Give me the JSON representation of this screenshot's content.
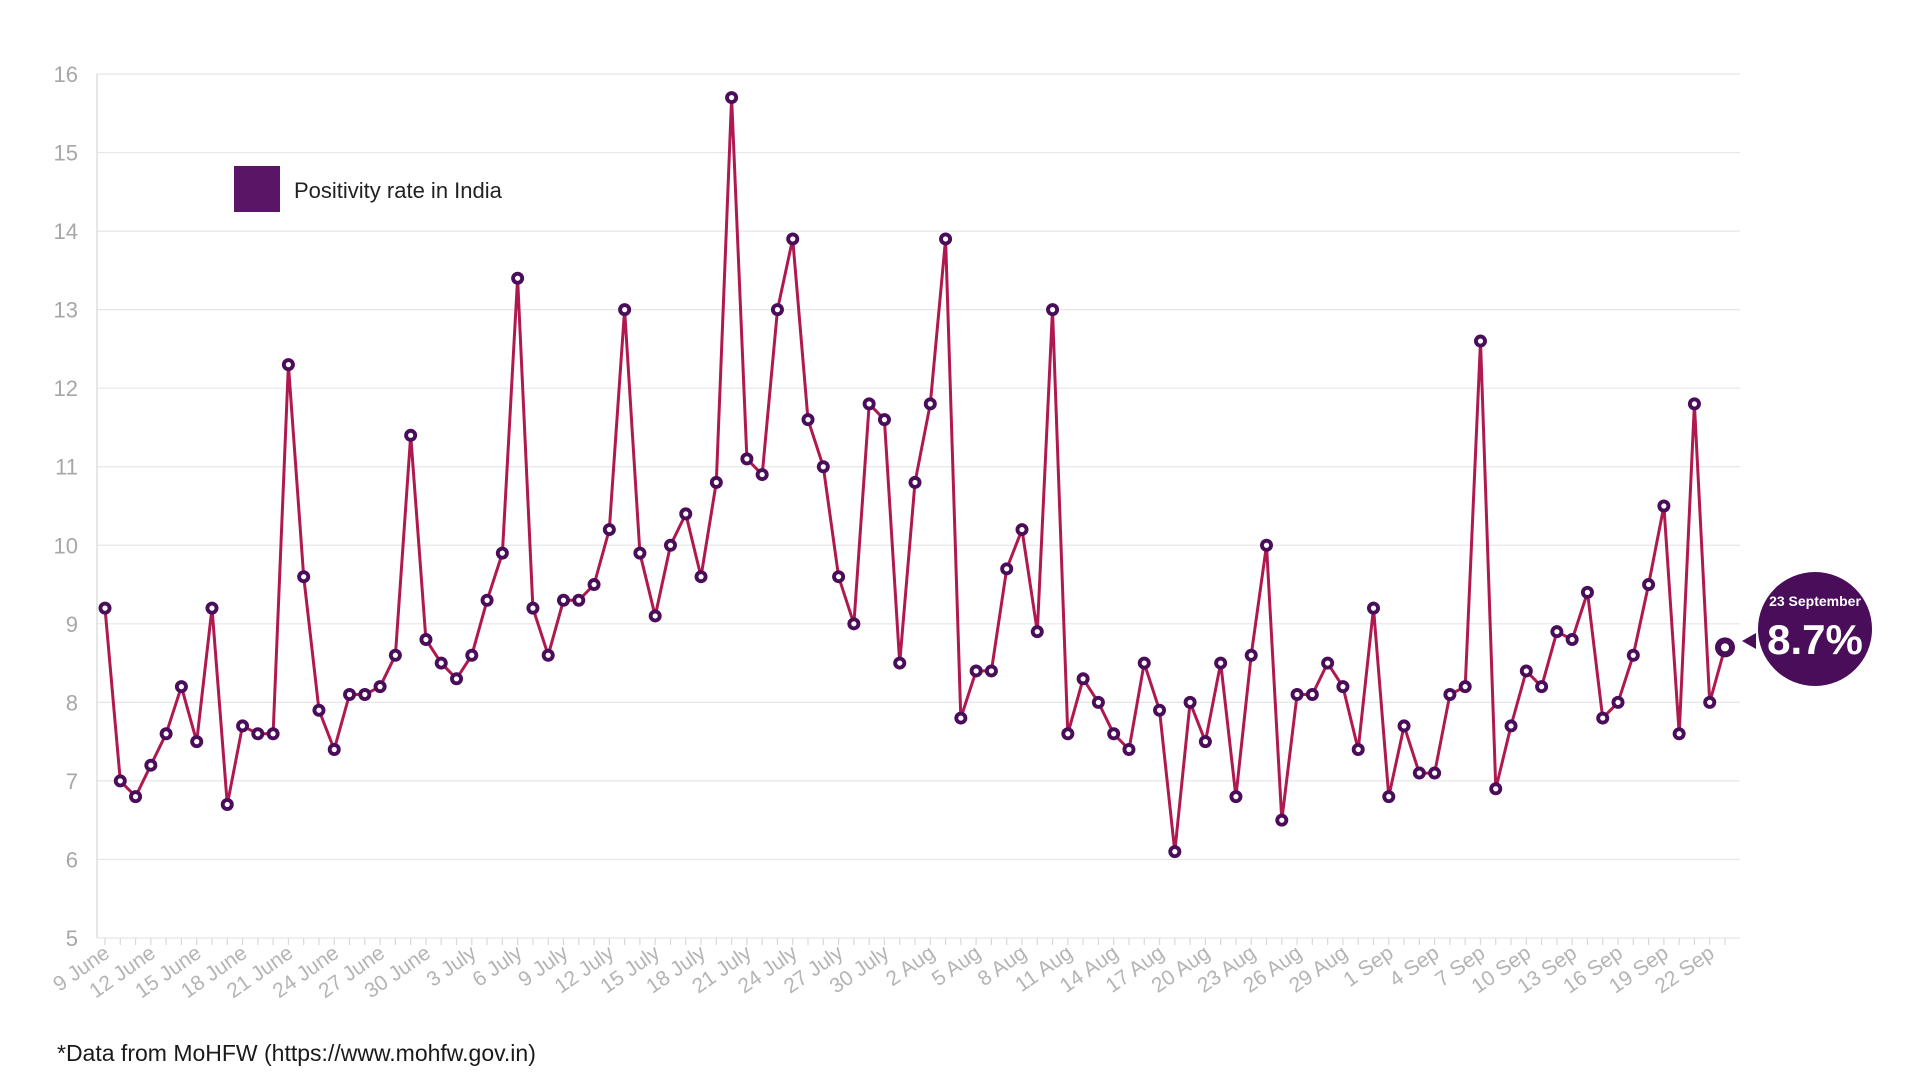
{
  "colors": {
    "line": "#b0194f",
    "marker_fill": "#4a0d5a",
    "marker_center": "#ffffff",
    "legend_swatch": "#5a1566",
    "callout_bg": "#4a0d5a"
  },
  "footnote": "*Data from MoHFW (https://www.mohfw.gov.in)",
  "callout": {
    "date": "23 September",
    "value": "8.7%"
  },
  "chart_data": {
    "type": "line",
    "title": "",
    "xlabel": "",
    "ylabel": "",
    "ylim": [
      5,
      16
    ],
    "yticks": [
      5,
      6,
      7,
      8,
      9,
      10,
      11,
      12,
      13,
      14,
      15,
      16
    ],
    "grid": true,
    "legend_position": "top-left",
    "x_tick_labels": [
      "9 June",
      "12 June",
      "15 June",
      "18 June",
      "21 June",
      "24 June",
      "27 June",
      "30 June",
      "3 July",
      "6 July",
      "9 July",
      "12 July",
      "15 July",
      "18 July",
      "21 July",
      "24 July",
      "27 July",
      "30 July",
      "2 Aug",
      "5 Aug",
      "8 Aug",
      "11 Aug",
      "14 Aug",
      "17 Aug",
      "20 Aug",
      "23 Aug",
      "26 Aug",
      "29 Aug",
      "1 Sep",
      "4 Sep",
      "7 Sep",
      "10 Sep",
      "13 Sep",
      "16 Sep",
      "19 Sep",
      "22 Sep"
    ],
    "series": [
      {
        "name": "Positivity rate in India",
        "values": [
          9.2,
          7.0,
          6.8,
          7.2,
          7.6,
          8.2,
          7.5,
          9.2,
          6.7,
          7.7,
          7.6,
          7.6,
          12.3,
          9.6,
          7.9,
          7.4,
          8.1,
          8.1,
          8.2,
          8.6,
          11.4,
          8.8,
          8.5,
          8.3,
          8.6,
          9.3,
          9.9,
          13.4,
          9.2,
          8.6,
          9.3,
          9.3,
          9.5,
          10.2,
          13.0,
          9.9,
          9.1,
          10.0,
          10.4,
          9.6,
          10.8,
          15.7,
          11.1,
          10.9,
          13.0,
          13.9,
          11.6,
          11.0,
          9.6,
          9.0,
          11.8,
          11.6,
          8.5,
          10.8,
          11.8,
          13.9,
          7.8,
          8.4,
          8.4,
          9.7,
          10.2,
          8.9,
          13.0,
          7.6,
          8.3,
          8.0,
          7.6,
          7.4,
          8.5,
          7.9,
          6.1,
          8.0,
          7.5,
          8.5,
          6.8,
          8.6,
          10.0,
          6.5,
          8.1,
          8.1,
          8.5,
          8.2,
          7.4,
          9.2,
          6.8,
          7.7,
          7.1,
          7.1,
          8.1,
          8.2,
          12.6,
          6.9,
          7.7,
          8.4,
          8.2,
          8.9,
          8.8,
          9.4,
          7.8,
          8.0,
          8.6,
          9.5,
          10.5,
          7.6,
          11.8,
          8.0,
          8.7
        ]
      }
    ]
  }
}
